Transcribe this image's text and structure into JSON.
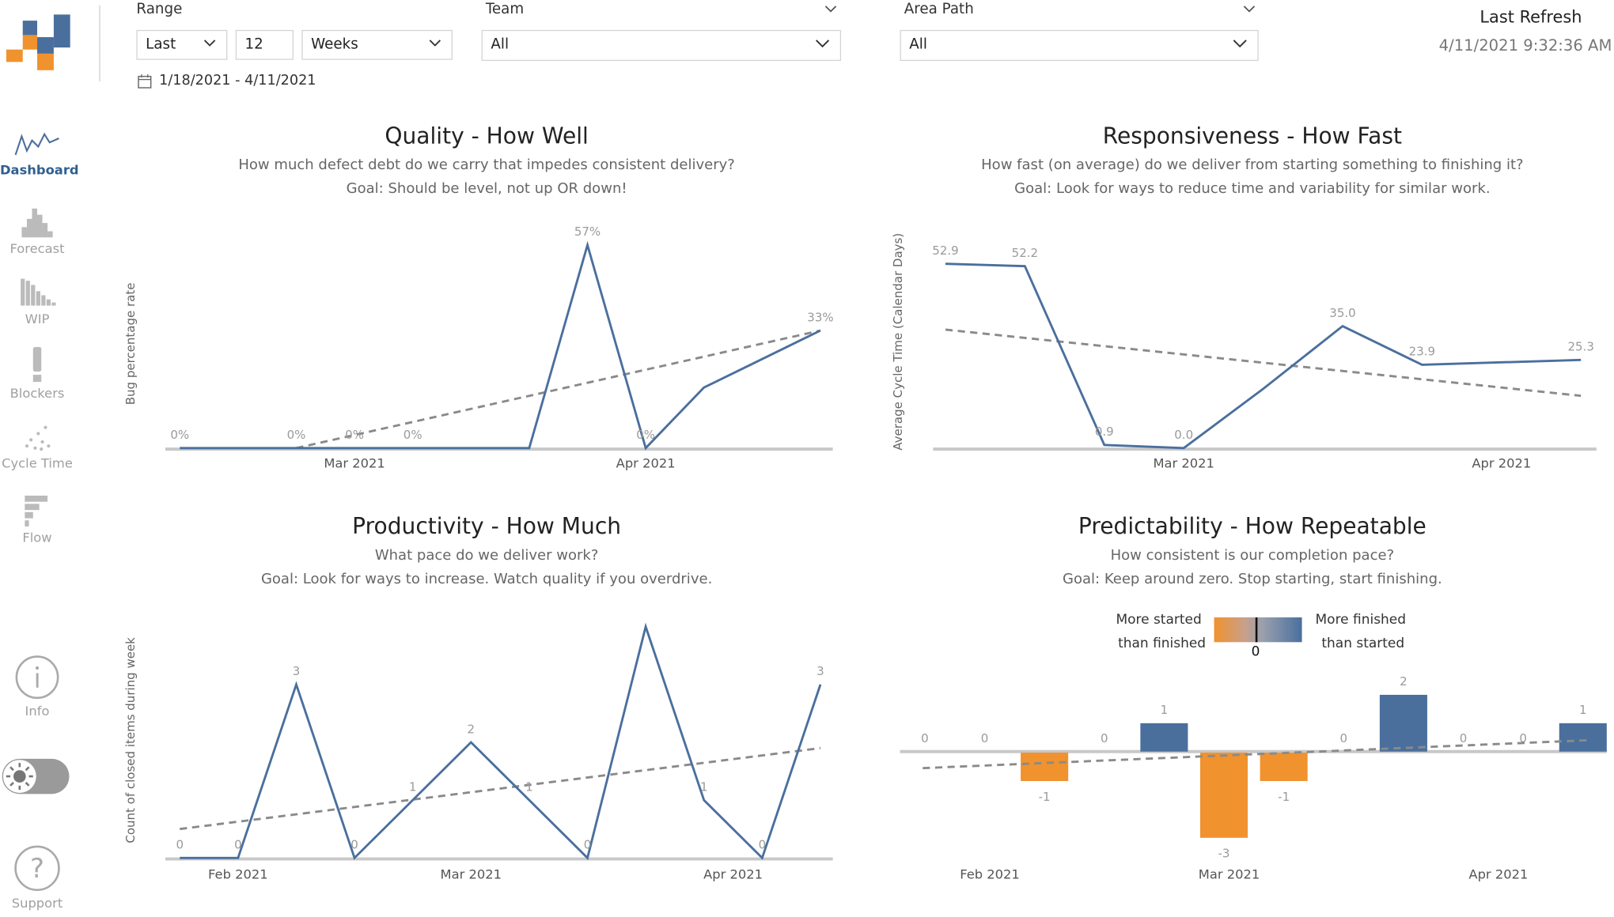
{
  "logo": {
    "name": "flow-logo"
  },
  "nav": {
    "items": [
      {
        "label": "Dashboard",
        "icon": "line-chart-icon"
      },
      {
        "label": "Forecast",
        "icon": "histogram-icon"
      },
      {
        "label": "WIP",
        "icon": "bars-descending-icon"
      },
      {
        "label": "Blockers",
        "icon": "exclamation-icon"
      },
      {
        "label": "Cycle Time",
        "icon": "scatter-icon"
      },
      {
        "label": "Flow",
        "icon": "flow-steps-icon"
      }
    ],
    "info_label": "Info",
    "support_label": "Support",
    "theme_toggle_icon": "sun-icon"
  },
  "filters": {
    "range_label": "Range",
    "range_mode": "Last",
    "range_count": "12",
    "range_unit": "Weeks",
    "date_range": "1/18/2021 - 4/11/2021",
    "team_label": "Team",
    "team_value": "All",
    "area_label": "Area Path",
    "area_value": "All"
  },
  "refresh": {
    "label": "Last Refresh",
    "value": "4/11/2021 9:32:36 AM"
  },
  "panels": {
    "quality": {
      "title": "Quality - How Well",
      "line1": "How much defect debt do we carry that impedes consistent delivery?",
      "line2": "Goal: Should be level, not up OR down!"
    },
    "responsiveness": {
      "title": "Responsiveness - How Fast",
      "line1": "How fast (on average) do we deliver from starting something to finishing it?",
      "line2": "Goal: Look for ways to reduce time and variability for similar work."
    },
    "productivity": {
      "title": "Productivity - How Much",
      "line1": "What pace do we deliver work?",
      "line2": "Goal: Look for ways to increase. Watch quality if you overdrive."
    },
    "predictability": {
      "title": "Predictability - How Repeatable",
      "line1": "How consistent is our completion pace?",
      "line2": "Goal: Keep around zero. Stop starting, start finishing.",
      "legend_left_1": "More started",
      "legend_left_2": "than finished",
      "legend_right_1": "More finished",
      "legend_right_2": "than started",
      "legend_zero": "0"
    }
  },
  "colors": {
    "line": "#4a6f9d",
    "trend": "#8a8a8a",
    "axis": "#c8c8c8",
    "orange": "#f0922e",
    "blue": "#4a6f9d"
  },
  "chart_data": [
    {
      "id": "quality",
      "type": "line",
      "title": "Quality - How Well",
      "ylabel": "Bug percentage rate",
      "x": [
        0,
        1,
        2,
        3,
        4,
        5,
        6,
        7,
        8,
        9,
        10,
        11
      ],
      "values": [
        0,
        0,
        0,
        0,
        0,
        0,
        0,
        57,
        0,
        17,
        25,
        33
      ],
      "point_labels": [
        "0%",
        "",
        "0%",
        "0%",
        "0%",
        "",
        "",
        "57%",
        "0%",
        "",
        "",
        "33%"
      ],
      "x_ticks": [
        {
          "x": 3,
          "label": "Mar 2021"
        },
        {
          "x": 8,
          "label": "Apr 2021"
        }
      ],
      "trend": [
        0,
        33
      ],
      "trend_start": 2,
      "ylim": [
        0,
        60
      ]
    },
    {
      "id": "responsiveness",
      "type": "line",
      "title": "Responsiveness - How Fast",
      "ylabel": "Average Cycle Time (Calendar Days)",
      "x": [
        0,
        1,
        2,
        3,
        4,
        5,
        6,
        7,
        8
      ],
      "values": [
        52.9,
        52.2,
        0.9,
        0.0,
        17,
        35.0,
        23.9,
        24.6,
        25.3
      ],
      "point_labels": [
        "52.9",
        "52.2",
        "0.9",
        "0.0",
        "",
        "35.0",
        "23.9",
        "",
        "25.3"
      ],
      "x_ticks": [
        {
          "x": 3,
          "label": "Mar 2021"
        },
        {
          "x": 7,
          "label": "Apr 2021"
        }
      ],
      "trend": [
        34,
        15
      ],
      "ylim": [
        0,
        56
      ]
    },
    {
      "id": "productivity",
      "type": "line",
      "title": "Productivity - How Much",
      "ylabel": "Count of closed items during week",
      "x": [
        0,
        1,
        2,
        3,
        4,
        5,
        6,
        7,
        8,
        9,
        10,
        11
      ],
      "values": [
        0,
        0,
        3,
        0,
        1,
        2,
        1,
        0,
        4,
        1,
        0,
        3
      ],
      "point_labels": [
        "0",
        "0",
        "3",
        "0",
        "1",
        "2",
        "1",
        "0",
        "",
        "1",
        "0",
        "3"
      ],
      "x_ticks": [
        {
          "x": 1,
          "label": "Feb 2021"
        },
        {
          "x": 5,
          "label": "Mar 2021"
        },
        {
          "x": 9.5,
          "label": "Apr 2021"
        }
      ],
      "trend": [
        0.5,
        1.9
      ],
      "ylim": [
        0,
        4
      ]
    },
    {
      "id": "predictability",
      "type": "bar",
      "title": "Predictability - How Repeatable",
      "x": [
        0,
        1,
        2,
        3,
        4,
        5,
        6,
        7,
        8,
        9,
        10,
        11
      ],
      "values": [
        0,
        0,
        -1,
        0,
        1,
        -3,
        -1,
        0,
        2,
        0,
        0,
        1
      ],
      "point_labels": [
        "0",
        "0",
        "-1",
        "0",
        "1",
        "-3",
        "-1",
        "0",
        "2",
        "0",
        "0",
        "1"
      ],
      "x_ticks": [
        {
          "x": 1,
          "label": "Feb 2021"
        },
        {
          "x": 5,
          "label": "Mar 2021"
        },
        {
          "x": 9.5,
          "label": "Apr 2021"
        }
      ],
      "trend": [
        -0.6,
        0.4
      ],
      "ylim": [
        -3.1,
        2.1
      ]
    }
  ]
}
